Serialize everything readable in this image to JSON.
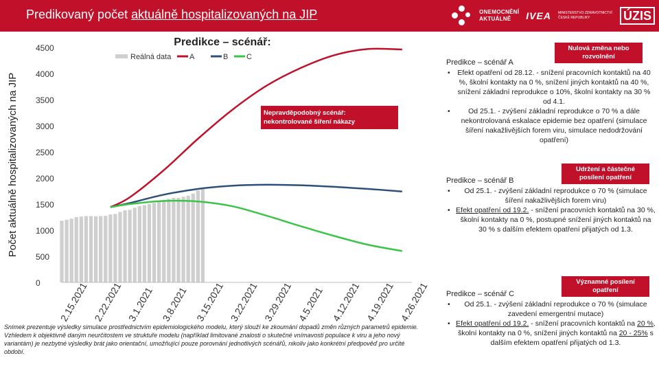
{
  "header": {
    "title_prefix": "Predikovaný počet ",
    "title_underlined": "aktuálně hospitalizovaných na JIP",
    "logo_onemocneni_1": "ONEMOCNĚNÍ",
    "logo_onemocneni_2": "AKTUÁLNĚ",
    "logo_ivea": "IVEA",
    "logo_mz_1": "MINISTERSTVO ZDRAVOTNICTVÍ",
    "logo_mz_2": "ČESKÉ REPUBLIKY",
    "logo_uzis": "ÚZIS"
  },
  "colors": {
    "red": "#c0102a",
    "A": "#c0102a",
    "B": "#2e4f7a",
    "C": "#3cc34a",
    "real": "#cfcfcf"
  },
  "chart_data": {
    "type": "line",
    "title": "Predikce – scénář:",
    "ylabel": "Počet aktuálně hospitalizovaných na JIP",
    "xlabel": "",
    "ylim": [
      0,
      4500
    ],
    "yticks": [
      "0",
      "500",
      "1000",
      "1500",
      "2000",
      "2500",
      "3000",
      "3500",
      "4000",
      "4500"
    ],
    "x_ticks": [
      "2.15.2021",
      "2.22.2021",
      "3.1.2021",
      "3.8.2021",
      "3.15.2021",
      "3.22.2021",
      "3.29.2021",
      "4.5.2021",
      "4.12.2021",
      "4.19.2021",
      "4.26.2021"
    ],
    "x_days": [
      0,
      7,
      14,
      21,
      28,
      35,
      42,
      49,
      56,
      63,
      70
    ],
    "legend": [
      "Reálná data",
      "A",
      "B",
      "C"
    ],
    "real_data": {
      "name": "Reálná data",
      "start_day": 0,
      "values": [
        1180,
        1200,
        1220,
        1250,
        1260,
        1270,
        1270,
        1265,
        1270,
        1275,
        1300,
        1310,
        1350,
        1380,
        1390,
        1430,
        1460,
        1480,
        1500,
        1520,
        1560,
        1580,
        1600,
        1620,
        1620,
        1640,
        1660,
        1700,
        1760,
        1800
      ]
    },
    "series": [
      {
        "name": "A",
        "x": [
          10,
          14,
          21,
          28,
          35,
          42,
          49,
          56,
          63,
          70
        ],
        "values": [
          1440,
          1630,
          2150,
          2750,
          3300,
          3760,
          4100,
          4350,
          4470,
          4460
        ]
      },
      {
        "name": "B",
        "x": [
          10,
          14,
          21,
          28,
          35,
          42,
          49,
          56,
          63,
          70
        ],
        "values": [
          1440,
          1520,
          1680,
          1790,
          1850,
          1870,
          1860,
          1830,
          1790,
          1740
        ]
      },
      {
        "name": "C",
        "x": [
          10,
          14,
          21,
          28,
          35,
          42,
          49,
          56,
          63,
          70
        ],
        "values": [
          1440,
          1500,
          1560,
          1550,
          1460,
          1280,
          1080,
          890,
          720,
          600
        ]
      }
    ],
    "annotation_red": "Nepravděpodobný scénář: nekontrolované šíření nákazy"
  },
  "scenarios": {
    "A": {
      "badge": "Nulová změna nebo rozvolnění",
      "title": "Predikce – scénář A",
      "bullets": [
        "Efekt opatření od 28.12. - snížení pracovních kontaktů na 40 %, školní kontakty na 0 %, snížení jiných kontaktů na 40 %, snížení základní reprodukce o 10%, školní kontakty na 30 % od 4.1.",
        "Od 25.1. - zvýšení základní reprodukce o 70 % a dále nekontrolovaná eskalace epidemie bez opatření (simulace šíření nakažlivějších forem viru, simulace nedodržování opatření)"
      ]
    },
    "B": {
      "badge": "Udržení a částečné posílení opatření",
      "title": "Predikce – scénář B",
      "b1": "Od 25.1. - zvýšení základní reprodukce o 70 % (simulace šíření nakažlivějších forem viru)",
      "b2_link": "Efekt opatření od 19.2.",
      "b2_rest": " - snížení pracovních kontaktů na 30 %, školní kontakty na 0 %, postupné snížení jiných kontaktů na 30 % s dalším efektem opatření přijatých od 1.3."
    },
    "C": {
      "badge": "Významné posílení opatření",
      "title": "Predikce – scénář C",
      "b1": "Od 25.1. - zvýšení základní reprodukce o 70 % (simulace zavedení emergentní mutace)",
      "b2_link": "Efekt opatření od 19.2.",
      "b2_mid": " - snížení pracovních kontaktů na ",
      "b2_pct1": "20 %",
      "b2_mid2": ", školní kontakty na 0 %, snížení jiných kontaktů na ",
      "b2_pct2": "20 - 25%",
      "b2_end": " s dalším efektem opatření přijatých od 1.3."
    }
  },
  "footnote": "Snímek prezentuje výsledky simulace prostřednictvím epidemiologického modelu, který slouží ke zkoumání dopadů změn různých parametrů epidemie. Vzhledem k objektivně daným neurčitostem ve struktuře modelu (například limitované znalosti o skutečné vnímavosti populace k viru a jeho nový variantám) je nezbytné výsledky brát jako orientační, umožňující pouze porovnání jednotlivých scénářů, nikoliv jako konkrétní předpověď pro určité období."
}
